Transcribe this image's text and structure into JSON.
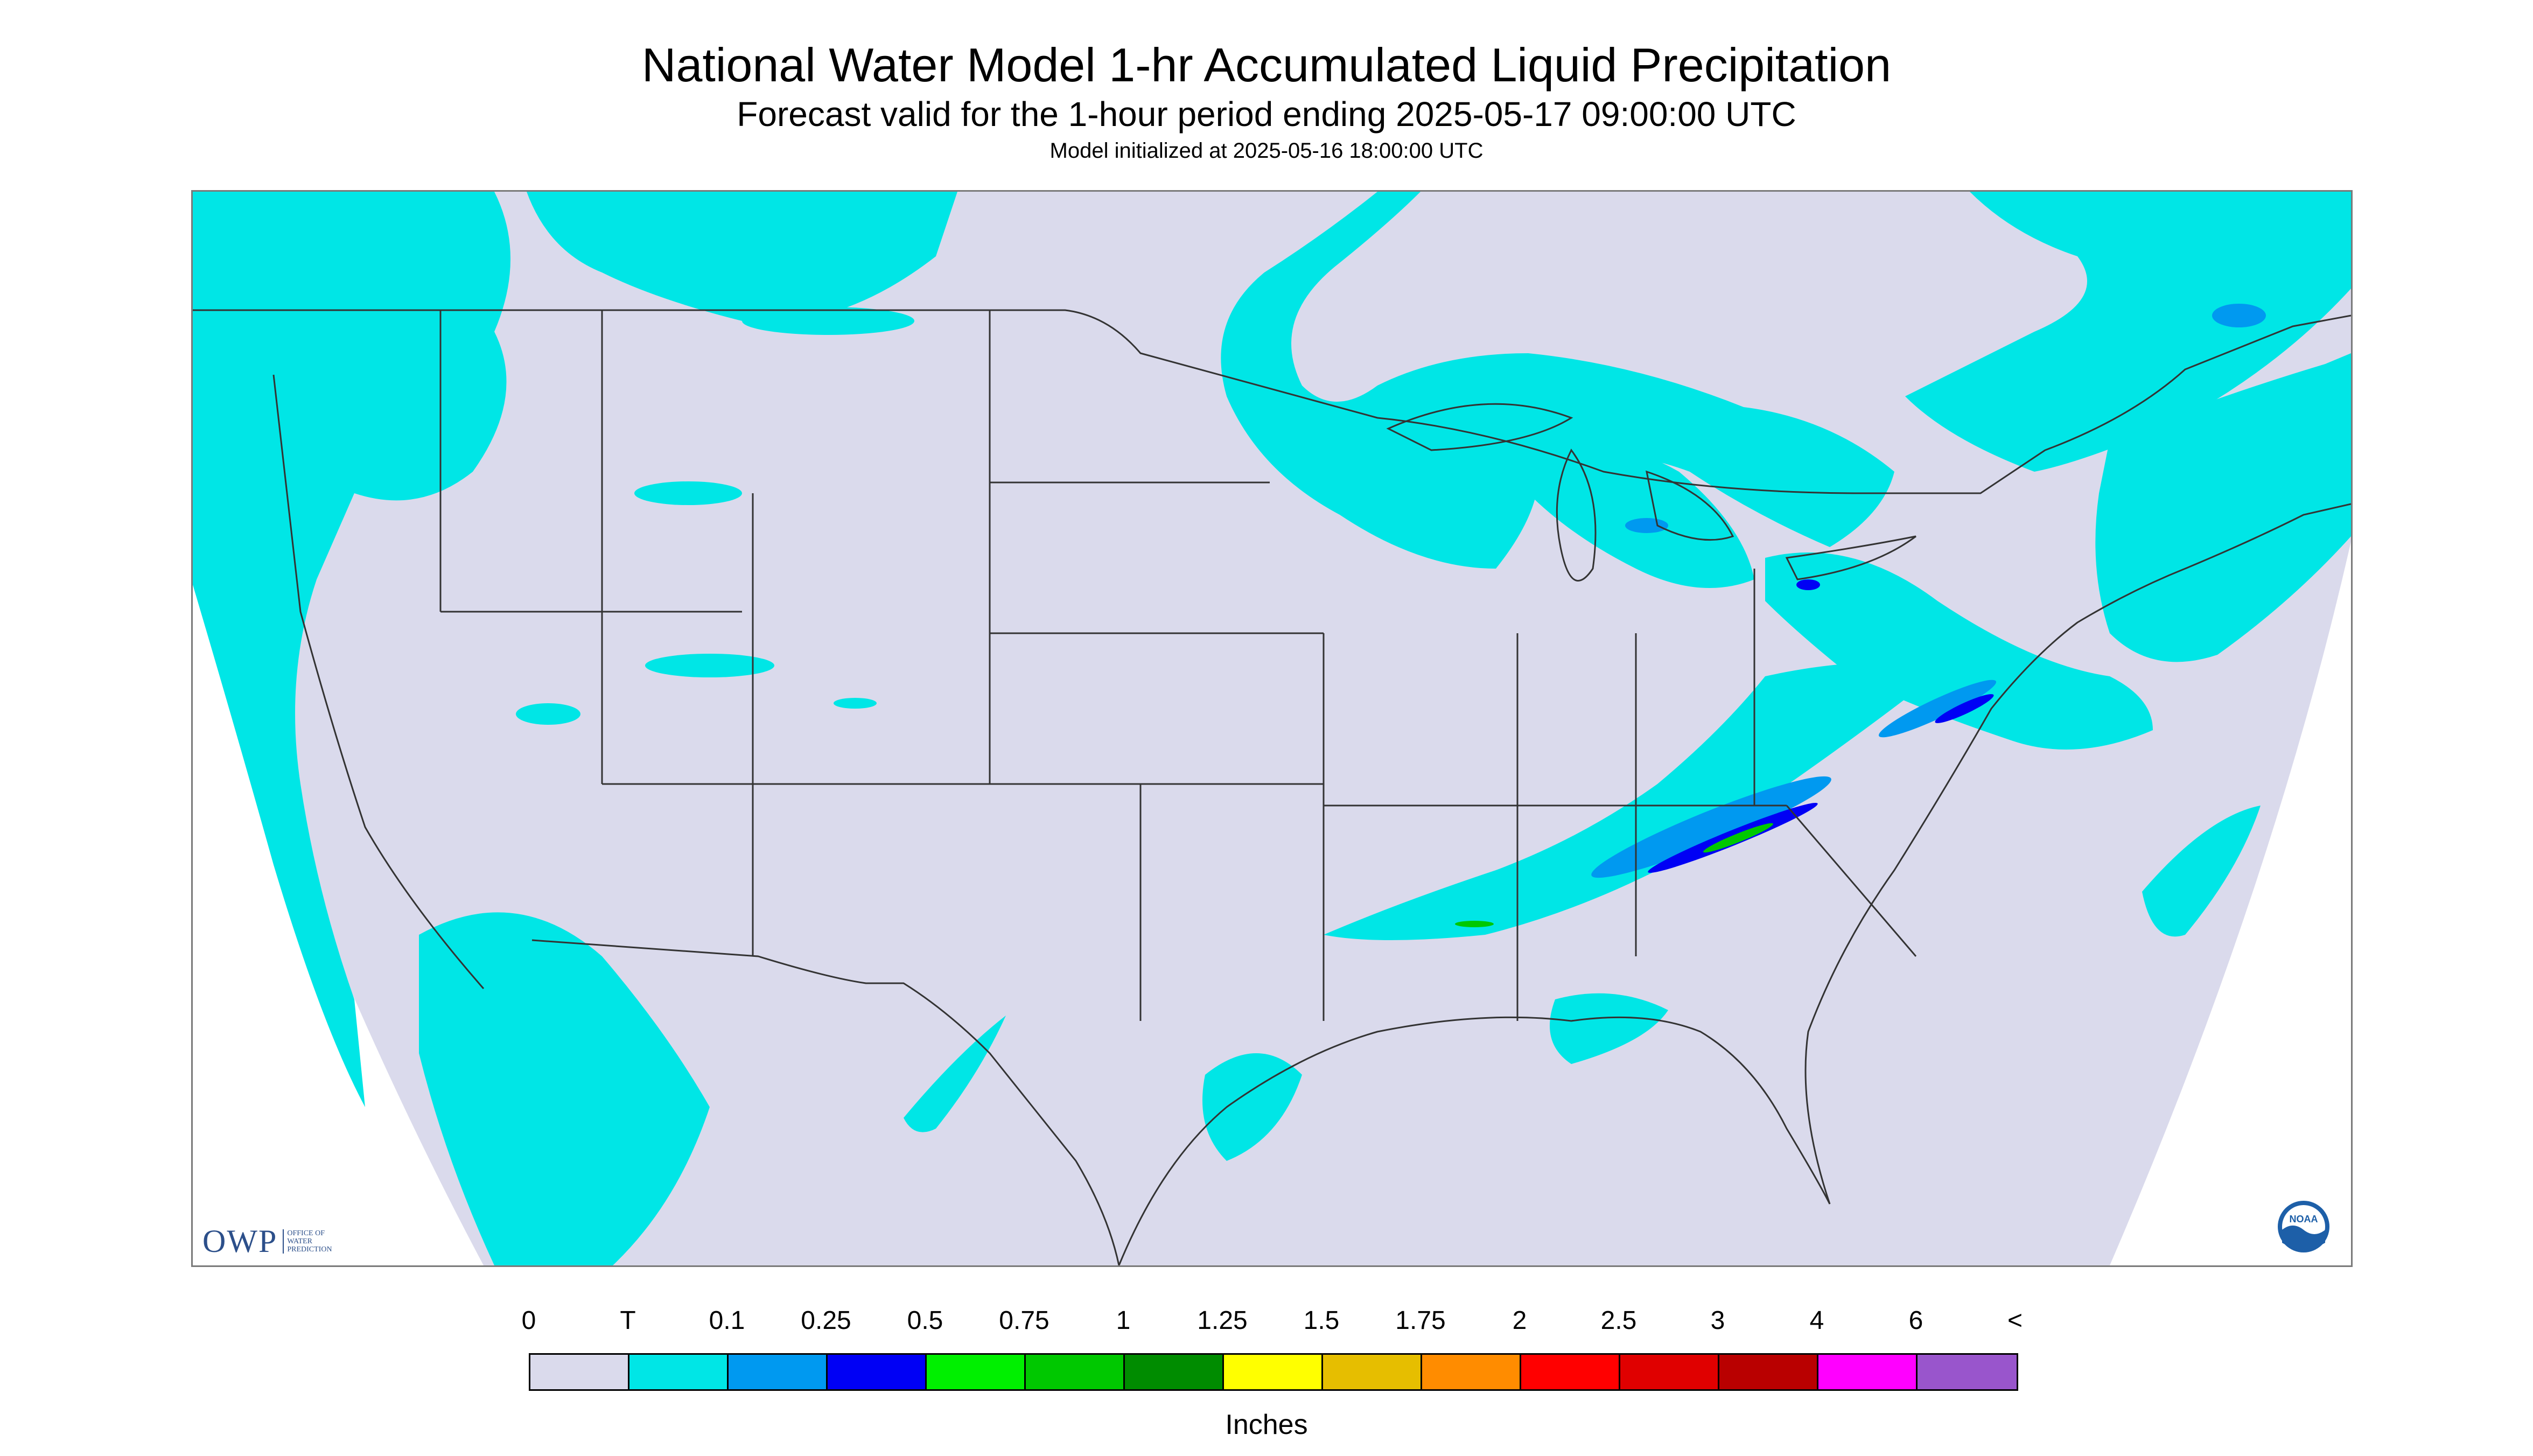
{
  "title": "National Water Model 1-hr Accumulated Liquid Precipitation",
  "subtitle": "Forecast valid for the 1-hour period ending 2025-05-17 09:00:00 UTC",
  "init_line": "Model initialized at 2025-05-16 18:00:00 UTC",
  "owp_logo": {
    "letters": "OWP",
    "lines": [
      "OFFICE OF",
      "WATER",
      "PREDICTION"
    ]
  },
  "noaa_logo_text": "NOAA",
  "legend": {
    "labels": [
      "0",
      "T",
      "0.1",
      "0.25",
      "0.5",
      "0.75",
      "1",
      "1.25",
      "1.5",
      "1.75",
      "2",
      "2.5",
      "3",
      "4",
      "6",
      "<"
    ],
    "colors": [
      "#dadaec",
      "#00e6e6",
      "#0099f0",
      "#0000f5",
      "#00f000",
      "#00c800",
      "#008c00",
      "#ffff00",
      "#e6be00",
      "#ff8c00",
      "#ff0000",
      "#e00000",
      "#b90000",
      "#ff00ff",
      "#9955cc"
    ],
    "units": "Inches"
  },
  "colors": {
    "background_no_precip": "#dadaec",
    "trace": "#00e6e6",
    "light": "#0099f0",
    "moderate": "#0000f5",
    "heavy": "#00c800",
    "borders": "#333333"
  }
}
